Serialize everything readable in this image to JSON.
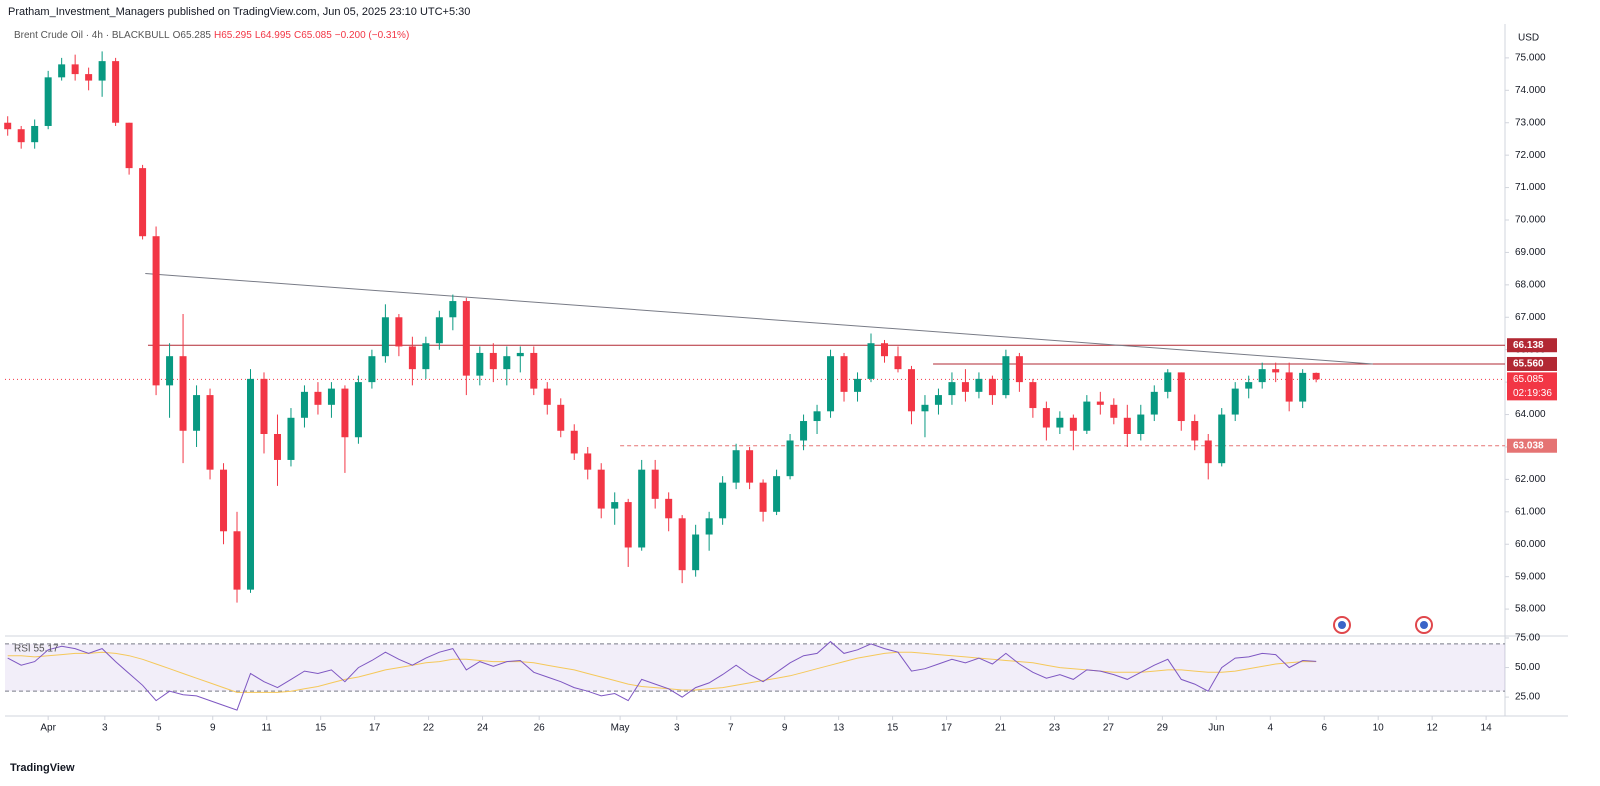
{
  "header": {
    "published": "Pratham_Investment_Managers published on TradingView.com, Jun 05, 2025 23:10 UTC+5:30"
  },
  "chart_data": {
    "type": "candlestick",
    "symbol": "Brent Crude Oil · 4h · BLACKBULL",
    "legend_texts": [
      "O65.285",
      "H65.295",
      "L64.995",
      "C65.085",
      "−0.200 (−0.31%)"
    ],
    "currency": "USD",
    "up_color": "#089981",
    "down_color": "#f23645",
    "grid": false,
    "x": [
      -1.5,
      -1,
      -0.5,
      0,
      0.5,
      1,
      1.5,
      2,
      2.5,
      3,
      3.5,
      4,
      4.5,
      5,
      5.5,
      6,
      6.5,
      7,
      7.5,
      8,
      8.5,
      9,
      9.5,
      10,
      10.5,
      11,
      11.5,
      12,
      12.5,
      13,
      13.5,
      14,
      14.5,
      15,
      15.5,
      16,
      16.5,
      17,
      17.5,
      18,
      18.5,
      19,
      19.5,
      20,
      20.5,
      21,
      21.5,
      22,
      22.5,
      23,
      23.5,
      24,
      24.5,
      25,
      25.5,
      26,
      26.5,
      27,
      27.5,
      28,
      28.5,
      29,
      29.5,
      30,
      30.5,
      31,
      31.5,
      32,
      32.5,
      33,
      33.5,
      34,
      34.5,
      35,
      35.5,
      36,
      36.5,
      37,
      37.5,
      38,
      38.5,
      39,
      39.5,
      40,
      40.5,
      41,
      41.5,
      42,
      42.5,
      43,
      43.5,
      44,
      44.5,
      45,
      45.5,
      46,
      46.5,
      47
    ],
    "open": [
      73.0,
      72.8,
      72.4,
      72.9,
      74.4,
      74.8,
      74.5,
      74.3,
      74.9,
      73.0,
      71.6,
      69.5,
      64.9,
      65.8,
      63.5,
      64.6,
      62.3,
      60.4,
      58.6,
      65.1,
      63.4,
      62.6,
      63.9,
      64.7,
      64.3,
      64.8,
      63.3,
      65.0,
      65.8,
      67.0,
      66.1,
      65.4,
      66.2,
      67.0,
      67.5,
      65.2,
      65.9,
      65.4,
      65.8,
      65.9,
      64.8,
      64.3,
      63.5,
      62.8,
      62.3,
      61.1,
      61.3,
      59.9,
      62.3,
      61.4,
      60.8,
      59.2,
      60.3,
      60.8,
      61.9,
      62.9,
      61.9,
      61.0,
      62.1,
      63.2,
      63.8,
      64.1,
      65.8,
      64.7,
      65.1,
      66.2,
      65.8,
      65.4,
      64.1,
      64.3,
      64.6,
      65.0,
      64.7,
      65.1,
      64.6,
      65.8,
      65.0,
      64.2,
      63.6,
      63.9,
      63.5,
      64.4,
      64.3,
      63.9,
      63.4,
      64.0,
      64.7,
      65.3,
      63.8,
      63.2,
      62.5,
      64.0,
      64.8,
      65.0,
      65.4,
      65.3,
      64.4,
      65.285
    ],
    "high": [
      73.2,
      72.9,
      73.1,
      74.6,
      75.0,
      75.1,
      74.7,
      75.2,
      75.0,
      73.0,
      71.7,
      69.8,
      66.2,
      67.1,
      64.9,
      64.8,
      62.5,
      61.0,
      65.4,
      65.3,
      64.0,
      64.2,
      64.9,
      65.0,
      65.0,
      64.9,
      65.2,
      66.0,
      67.4,
      67.1,
      66.4,
      66.4,
      67.2,
      67.7,
      67.6,
      66.1,
      66.2,
      66.1,
      66.1,
      66.1,
      65.0,
      64.5,
      63.7,
      63.0,
      62.5,
      61.6,
      61.4,
      62.6,
      62.6,
      61.6,
      60.9,
      60.6,
      61.0,
      62.1,
      63.1,
      63.0,
      62.0,
      62.3,
      63.4,
      64.0,
      64.3,
      66.0,
      65.9,
      65.3,
      66.5,
      66.3,
      66.1,
      65.5,
      64.6,
      64.8,
      65.3,
      65.4,
      65.3,
      65.2,
      66.0,
      65.9,
      65.1,
      64.4,
      64.1,
      64.0,
      64.6,
      64.7,
      64.5,
      64.3,
      64.3,
      64.9,
      65.4,
      65.3,
      64.0,
      63.4,
      64.2,
      65.0,
      65.2,
      65.6,
      65.6,
      65.6,
      65.4,
      65.295
    ],
    "low": [
      72.6,
      72.2,
      72.2,
      72.8,
      74.3,
      74.3,
      74.0,
      73.8,
      72.9,
      71.4,
      69.4,
      64.6,
      63.9,
      62.5,
      63.0,
      62.0,
      60.0,
      58.2,
      58.5,
      62.8,
      61.8,
      62.4,
      63.6,
      64.0,
      63.9,
      62.2,
      63.1,
      64.8,
      65.6,
      65.8,
      64.9,
      65.1,
      66.0,
      66.6,
      64.6,
      64.9,
      65.0,
      64.9,
      65.3,
      64.6,
      64.0,
      63.3,
      62.6,
      62.0,
      60.8,
      60.6,
      59.3,
      59.8,
      61.1,
      60.4,
      58.8,
      59.0,
      59.8,
      60.6,
      61.7,
      61.7,
      60.7,
      60.9,
      62.0,
      62.9,
      63.4,
      63.9,
      64.4,
      64.4,
      65.0,
      65.6,
      65.3,
      63.7,
      63.3,
      64.0,
      64.3,
      64.4,
      64.5,
      64.3,
      64.5,
      64.7,
      63.9,
      63.2,
      63.4,
      62.9,
      63.4,
      64.0,
      63.7,
      63.0,
      63.2,
      63.8,
      64.5,
      63.5,
      62.9,
      62.0,
      62.4,
      63.8,
      64.5,
      64.8,
      65.0,
      64.1,
      64.2,
      64.995
    ],
    "close": [
      72.8,
      72.4,
      72.9,
      74.4,
      74.8,
      74.5,
      74.3,
      74.9,
      73.0,
      71.6,
      69.5,
      64.9,
      65.8,
      63.5,
      64.6,
      62.3,
      60.4,
      58.6,
      65.1,
      63.4,
      62.6,
      63.9,
      64.7,
      64.3,
      64.8,
      63.3,
      65.0,
      65.8,
      67.0,
      66.1,
      65.4,
      66.2,
      67.0,
      67.5,
      65.2,
      65.9,
      65.4,
      65.8,
      65.9,
      64.8,
      64.3,
      63.5,
      62.8,
      62.3,
      61.1,
      61.3,
      59.9,
      62.3,
      61.4,
      60.8,
      59.2,
      60.3,
      60.8,
      61.9,
      62.9,
      61.9,
      61.0,
      62.1,
      63.2,
      63.8,
      64.1,
      65.8,
      64.7,
      65.1,
      66.2,
      65.8,
      65.4,
      64.1,
      64.3,
      64.6,
      65.0,
      64.7,
      65.1,
      64.6,
      65.8,
      65.0,
      64.2,
      63.6,
      63.9,
      63.5,
      64.4,
      64.3,
      63.9,
      63.4,
      64.0,
      64.7,
      65.3,
      63.8,
      63.2,
      62.5,
      64.0,
      64.8,
      65.0,
      65.4,
      65.3,
      64.4,
      65.285,
      65.085
    ],
    "xlim": [
      -1.6,
      54
    ],
    "xticks": [
      {
        "value": 0,
        "label": "Apr"
      },
      {
        "value": 2.1,
        "label": "3"
      },
      {
        "value": 4.1,
        "label": "5"
      },
      {
        "value": 6.1,
        "label": "9"
      },
      {
        "value": 8.1,
        "label": "11"
      },
      {
        "value": 10.1,
        "label": "15"
      },
      {
        "value": 12.1,
        "label": "17"
      },
      {
        "value": 14.1,
        "label": "22"
      },
      {
        "value": 16.1,
        "label": "24"
      },
      {
        "value": 18.2,
        "label": "26"
      },
      {
        "value": 21.2,
        "label": "May"
      },
      {
        "value": 23.3,
        "label": "3"
      },
      {
        "value": 25.3,
        "label": "7"
      },
      {
        "value": 27.3,
        "label": "9"
      },
      {
        "value": 29.3,
        "label": "13"
      },
      {
        "value": 31.3,
        "label": "15"
      },
      {
        "value": 33.3,
        "label": "17"
      },
      {
        "value": 35.3,
        "label": "21"
      },
      {
        "value": 37.3,
        "label": "23"
      },
      {
        "value": 39.3,
        "label": "27"
      },
      {
        "value": 41.3,
        "label": "29"
      },
      {
        "value": 43.3,
        "label": "Jun"
      },
      {
        "value": 45.3,
        "label": "4"
      },
      {
        "value": 47.3,
        "label": "6"
      },
      {
        "value": 49.3,
        "label": "10"
      },
      {
        "value": 51.3,
        "label": "12"
      },
      {
        "value": 53.3,
        "label": "14"
      }
    ],
    "ylim": [
      57.17,
      75.86
    ],
    "yticks": [
      {
        "value": 58,
        "label": "58.000"
      },
      {
        "value": 59,
        "label": "59.000"
      },
      {
        "value": 60,
        "label": "60.000"
      },
      {
        "value": 61,
        "label": "61.000"
      },
      {
        "value": 62,
        "label": "62.000"
      },
      {
        "value": 63,
        "label": "63.000"
      },
      {
        "value": 64,
        "label": "64.000"
      },
      {
        "value": 65,
        "label": "65.000"
      },
      {
        "value": 66,
        "label": "66.000"
      },
      {
        "value": 67,
        "label": "67.000"
      },
      {
        "value": 68,
        "label": "68.000"
      },
      {
        "value": 69,
        "label": "69.000"
      },
      {
        "value": 70,
        "label": "70.000"
      },
      {
        "value": 71,
        "label": "71.000"
      },
      {
        "value": 72,
        "label": "72.000"
      },
      {
        "value": 73,
        "label": "73.000"
      },
      {
        "value": 74,
        "label": "74.000"
      },
      {
        "value": 75,
        "label": "75.000"
      }
    ],
    "levels": [
      {
        "value": 66.138,
        "label": "66.138",
        "x_start": 3.7,
        "dashed": false,
        "color": "#b22833"
      },
      {
        "value": 65.56,
        "label": "65.560",
        "x_start": 32.8,
        "dashed": false,
        "color": "#b22833"
      },
      {
        "value": 63.038,
        "label": "63.038",
        "x_start": 21.2,
        "dashed": true,
        "color": "#e57373"
      }
    ],
    "trendline": {
      "x": [
        3.6,
        49.1
      ],
      "y": [
        68.35,
        65.56
      ],
      "color": "#787b86"
    },
    "last_price": {
      "value": 65.085,
      "label": "65.085",
      "countdown": "02:19:36"
    },
    "rsi": {
      "label": "RSI 55.17",
      "color": "#7e57c2",
      "ma_color": "#f5c85a",
      "band": [
        30,
        70
      ],
      "ylim": [
        9,
        76.7
      ],
      "yticks": [
        {
          "value": 25,
          "label": "25.00"
        },
        {
          "value": 50,
          "label": "50.00"
        },
        {
          "value": 75,
          "label": "75.00"
        }
      ],
      "values": [
        58,
        52,
        55,
        65,
        68,
        66,
        62,
        66,
        55,
        45,
        35,
        22,
        30,
        27,
        26,
        22,
        18,
        14,
        45,
        38,
        33,
        40,
        47,
        45,
        48,
        38,
        50,
        56,
        63,
        57,
        52,
        58,
        63,
        66,
        48,
        55,
        51,
        55,
        56,
        46,
        42,
        38,
        33,
        30,
        26,
        28,
        22,
        40,
        36,
        32,
        25,
        33,
        37,
        44,
        52,
        44,
        38,
        46,
        54,
        60,
        62,
        72,
        62,
        65,
        70,
        66,
        63,
        47,
        49,
        53,
        57,
        54,
        58,
        53,
        62,
        53,
        46,
        41,
        44,
        40,
        48,
        47,
        44,
        40,
        46,
        52,
        57,
        40,
        36,
        30,
        50,
        58,
        59,
        62,
        61,
        50,
        56,
        55.17
      ],
      "ma": [
        60,
        60,
        59,
        60,
        61,
        62,
        62,
        63,
        62,
        60,
        57,
        53,
        49,
        45,
        41,
        37,
        33,
        29,
        29,
        29,
        29,
        30,
        32,
        34,
        37,
        40,
        42,
        45,
        48,
        50,
        52,
        54,
        55,
        57,
        57,
        56,
        55,
        55,
        55,
        54,
        52,
        50,
        48,
        45,
        42,
        39,
        36,
        34,
        33,
        32,
        31,
        31,
        32,
        33,
        35,
        37,
        39,
        41,
        43,
        46,
        49,
        52,
        55,
        58,
        60,
        62,
        63,
        63,
        62,
        61,
        60,
        59,
        58,
        57,
        56,
        55,
        54,
        52,
        50,
        49,
        48,
        47,
        46,
        46,
        46,
        47,
        48,
        48,
        47,
        46,
        46,
        47,
        49,
        51,
        53,
        54,
        55,
        55
      ]
    }
  },
  "footer": {
    "brand": "TradingView"
  }
}
